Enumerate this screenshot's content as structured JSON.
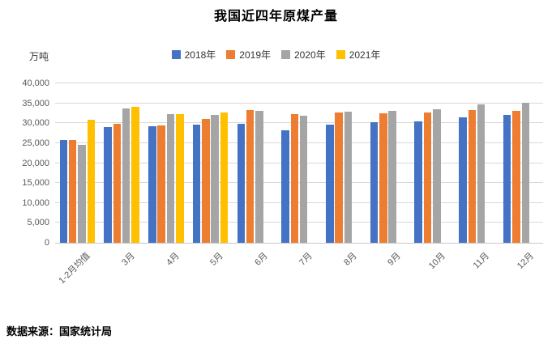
{
  "page": {
    "title": "我国近四年原煤产量",
    "source_note": "数据来源：国家统计局"
  },
  "chart_data": {
    "type": "bar",
    "title": "我国近四年原煤产量",
    "ylabel": "万吨",
    "xlabel": "",
    "ylim": [
      0,
      40000
    ],
    "ytick_step": 5000,
    "grid": true,
    "legend_position": "top",
    "categories": [
      "1-2月均值",
      "3月",
      "4月",
      "5月",
      "6月",
      "7月",
      "8月",
      "9月",
      "10月",
      "11月",
      "12月"
    ],
    "series": [
      {
        "name": "2018年",
        "color": "#4472C4",
        "values": [
          25800,
          29000,
          29300,
          29700,
          29800,
          28200,
          29700,
          30300,
          30500,
          31500,
          32000
        ]
      },
      {
        "name": "2019年",
        "color": "#ED7D31",
        "values": [
          25700,
          29800,
          29400,
          31100,
          33300,
          32200,
          32600,
          32400,
          32600,
          33400,
          33200
        ]
      },
      {
        "name": "2020年",
        "color": "#A5A5A5",
        "values": [
          24500,
          33700,
          32200,
          32000,
          33200,
          31800,
          32900,
          33000,
          33500,
          34700,
          35200
        ]
      },
      {
        "name": "2021年",
        "color": "#FFC000",
        "values": [
          30900,
          34100,
          32200,
          32600,
          null,
          null,
          null,
          null,
          null,
          null,
          null
        ]
      }
    ],
    "source": "数据来源：国家统计局"
  },
  "colors": {
    "grid": "#D9D9D9",
    "axis_text": "#595959",
    "title_text": "#000000"
  }
}
